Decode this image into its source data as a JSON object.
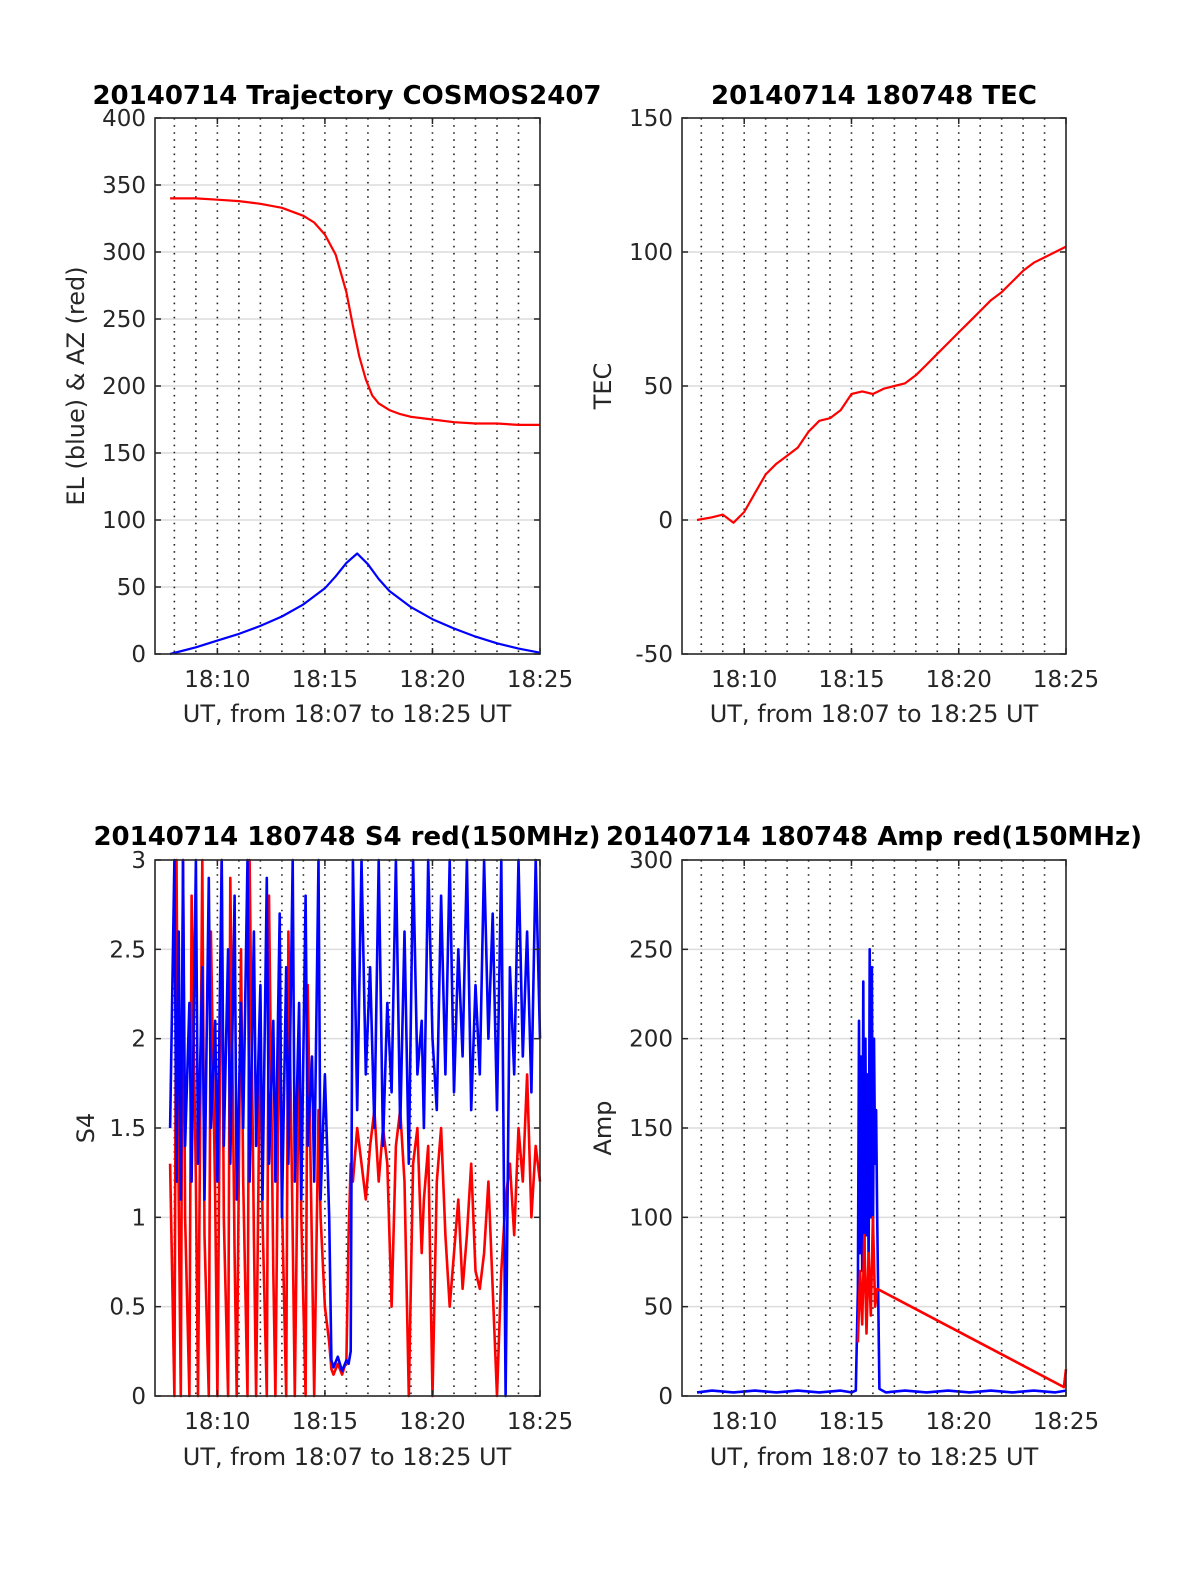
{
  "chart_data": [
    {
      "type": "line",
      "title": "20140714 Trajectory COSMOS2407",
      "xlabel": "UT, from 18:07 to 18:25 UT",
      "ylabel": "EL (blue) & AZ (red)",
      "x_unit": "minutes after 18:00 UT",
      "xlim": [
        7.1,
        25
      ],
      "ylim": [
        0,
        400
      ],
      "x_ticks": [
        10,
        15,
        20,
        25
      ],
      "x_tick_labels": [
        "18:10",
        "18:15",
        "18:20",
        "18:25"
      ],
      "y_ticks": [
        0,
        50,
        100,
        150,
        200,
        250,
        300,
        350,
        400
      ],
      "y_tick_labels": [
        "0",
        "50",
        "100",
        "150",
        "200",
        "250",
        "300",
        "350",
        "400"
      ],
      "grid": true,
      "series": [
        {
          "color": "#ff0000",
          "x": [
            7.8,
            9,
            10,
            11,
            12,
            13,
            14,
            14.5,
            15,
            15.5,
            16,
            16.3,
            16.6,
            16.9,
            17.2,
            17.5,
            18,
            18.5,
            19,
            20,
            21,
            22,
            23,
            24,
            25
          ],
          "y": [
            340,
            340,
            339,
            338,
            336,
            333,
            327,
            322,
            313,
            298,
            270,
            245,
            222,
            205,
            193,
            187,
            182,
            179,
            177,
            175,
            173,
            172,
            172,
            171,
            171
          ]
        },
        {
          "color": "#0000ff",
          "x": [
            7.8,
            9,
            10,
            11,
            12,
            13,
            14,
            15,
            15.5,
            16,
            16.5,
            17,
            17.5,
            18,
            19,
            20,
            21,
            22,
            23,
            24,
            25
          ],
          "y": [
            0,
            5,
            10,
            15,
            21,
            28,
            37,
            49,
            58,
            68,
            75,
            67,
            56,
            47,
            35,
            26,
            19,
            13,
            8,
            4,
            1
          ]
        }
      ]
    },
    {
      "type": "line",
      "title": "20140714 180748 TEC",
      "xlabel": "UT, from 18:07 to 18:25 UT",
      "ylabel": "TEC",
      "x_unit": "minutes after 18:00 UT",
      "xlim": [
        7.1,
        25
      ],
      "ylim": [
        -50,
        150
      ],
      "x_ticks": [
        10,
        15,
        20,
        25
      ],
      "x_tick_labels": [
        "18:10",
        "18:15",
        "18:20",
        "18:25"
      ],
      "y_ticks": [
        -50,
        0,
        50,
        100,
        150
      ],
      "y_tick_labels": [
        "-50",
        "0",
        "50",
        "100",
        "150"
      ],
      "grid": true,
      "series": [
        {
          "color": "#ff0000",
          "x": [
            7.8,
            8.5,
            9,
            9.5,
            10,
            10.5,
            11,
            11.5,
            12,
            12.5,
            13,
            13.5,
            14,
            14.5,
            15,
            15.5,
            16,
            16.5,
            17,
            17.5,
            18,
            18.5,
            19,
            19.5,
            20,
            20.5,
            21,
            21.5,
            22,
            22.5,
            23,
            23.5,
            24,
            24.5,
            25
          ],
          "y": [
            0,
            1,
            2,
            -1,
            3,
            10,
            17,
            21,
            24,
            27,
            33,
            37,
            38,
            41,
            47,
            48,
            47,
            49,
            50,
            51,
            54,
            58,
            62,
            66,
            70,
            74,
            78,
            82,
            85,
            89,
            93,
            96,
            98,
            100,
            102
          ]
        }
      ]
    },
    {
      "type": "line",
      "title": "20140714 180748 S4 red(150MHz)",
      "xlabel": "UT, from 18:07 to 18:25 UT",
      "ylabel": "S4",
      "x_unit": "minutes after 18:00 UT",
      "xlim": [
        7.1,
        25
      ],
      "ylim": [
        0,
        3
      ],
      "x_ticks": [
        10,
        15,
        20,
        25
      ],
      "x_tick_labels": [
        "18:10",
        "18:15",
        "18:20",
        "18:25"
      ],
      "y_ticks": [
        0,
        0.5,
        1,
        1.5,
        2,
        2.5,
        3
      ],
      "y_tick_labels": [
        "0",
        "0.5",
        "1",
        "1.5",
        "2",
        "2.5",
        "3"
      ],
      "grid": true,
      "series": [
        {
          "color": "#ff0000",
          "x": [
            7.8,
            8.0,
            8.1,
            8.2,
            8.3,
            8.4,
            8.5,
            8.7,
            8.8,
            9.0,
            9.1,
            9.3,
            9.4,
            9.6,
            9.7,
            9.9,
            10.0,
            10.2,
            10.3,
            10.5,
            10.6,
            10.8,
            10.9,
            11.1,
            11.2,
            11.4,
            11.5,
            11.7,
            11.8,
            12.0,
            12.1,
            12.3,
            12.4,
            12.6,
            12.7,
            12.9,
            13.0,
            13.2,
            13.3,
            13.5,
            13.6,
            13.8,
            13.9,
            14.1,
            14.2,
            14.4,
            14.5,
            14.7,
            14.8,
            15.0,
            15.2,
            15.3,
            15.4,
            15.6,
            15.8,
            16.0,
            16.1,
            16.2,
            16.3,
            16.5,
            16.7,
            16.9,
            17.1,
            17.3,
            17.5,
            17.7,
            17.9,
            18.1,
            18.3,
            18.5,
            18.7,
            18.9,
            19.1,
            19.3,
            19.5,
            19.6,
            19.8,
            20.0,
            20.2,
            20.4,
            20.6,
            20.8,
            21.0,
            21.2,
            21.4,
            21.6,
            21.8,
            22.0,
            22.2,
            22.4,
            22.6,
            22.8,
            23.0,
            23.2,
            23.4,
            23.6,
            23.8,
            24.0,
            24.2,
            24.4,
            24.6,
            24.8,
            25.0
          ],
          "y": [
            1.3,
            0,
            3,
            1.1,
            0,
            3,
            1.0,
            0,
            2.8,
            1.2,
            0,
            3,
            0.9,
            0,
            2.6,
            1.1,
            0,
            3,
            1.0,
            0,
            2.9,
            0.8,
            0,
            2.5,
            1.2,
            0,
            3,
            0.9,
            0,
            2.2,
            1.0,
            0,
            2.8,
            0.7,
            0,
            2.4,
            1.1,
            0,
            2.6,
            0.9,
            0,
            2.0,
            1.0,
            0,
            2.3,
            0.8,
            0,
            1.6,
            1.0,
            0.5,
            0.3,
            0.15,
            0.12,
            0.18,
            0.12,
            0.2,
            0.9,
            1.3,
            1.2,
            1.5,
            1.3,
            1.1,
            1.4,
            1.6,
            1.2,
            1.5,
            1.3,
            0.5,
            1.4,
            1.6,
            1.2,
            0,
            1.3,
            1.5,
            0.8,
            1.1,
            1.4,
            0,
            1.2,
            1.5,
            0.9,
            0.5,
            0.8,
            1.1,
            0.6,
            0.9,
            1.3,
            0.7,
            0.6,
            0.8,
            1.2,
            0.6,
            0,
            0.7,
            1.1,
            1.3,
            0.9,
            1.5,
            1.2,
            1.8,
            1.0,
            1.4,
            1.2
          ]
        },
        {
          "color": "#0000ff",
          "x": [
            7.8,
            8.0,
            8.1,
            8.2,
            8.3,
            8.4,
            8.5,
            8.7,
            8.8,
            9.0,
            9.1,
            9.3,
            9.4,
            9.6,
            9.7,
            9.9,
            10.0,
            10.2,
            10.3,
            10.5,
            10.6,
            10.8,
            10.9,
            11.1,
            11.2,
            11.4,
            11.5,
            11.7,
            11.8,
            12.0,
            12.1,
            12.3,
            12.4,
            12.6,
            12.7,
            12.9,
            13.0,
            13.2,
            13.3,
            13.5,
            13.6,
            13.8,
            13.9,
            14.1,
            14.2,
            14.4,
            14.5,
            14.7,
            14.8,
            15.0,
            15.2,
            15.3,
            15.4,
            15.6,
            15.8,
            16.0,
            16.1,
            16.2,
            16.3,
            16.5,
            16.7,
            16.9,
            17.1,
            17.3,
            17.5,
            17.7,
            17.9,
            18.1,
            18.3,
            18.5,
            18.7,
            18.9,
            19.1,
            19.3,
            19.5,
            19.6,
            19.8,
            20.0,
            20.2,
            20.4,
            20.6,
            20.8,
            21.0,
            21.2,
            21.4,
            21.6,
            21.8,
            22.0,
            22.2,
            22.4,
            22.6,
            22.8,
            23.0,
            23.2,
            23.4,
            23.6,
            23.8,
            24.0,
            24.2,
            24.4,
            24.6,
            24.8,
            25.0
          ],
          "y": [
            1.5,
            3,
            1.2,
            2.6,
            1.1,
            3,
            1.4,
            2.2,
            1.2,
            3,
            1.3,
            2.4,
            1.1,
            2.9,
            1.5,
            2.1,
            1.2,
            3,
            1.4,
            2.5,
            1.3,
            2.8,
            1.1,
            2.2,
            1.5,
            3,
            1.2,
            2.6,
            1.4,
            2.3,
            1.1,
            2.9,
            1.3,
            2.1,
            1.2,
            2.7,
            1.0,
            2.4,
            1.3,
            3,
            1.2,
            2.2,
            1.1,
            2.8,
            1.4,
            1.9,
            1.2,
            3,
            1.1,
            1.8,
            1.0,
            0.2,
            0.16,
            0.22,
            0.14,
            0.2,
            0.18,
            0.25,
            3,
            1.6,
            3,
            1.8,
            2.4,
            1.5,
            3,
            1.4,
            2.2,
            1.7,
            3,
            1.5,
            2.6,
            1.3,
            3,
            1.8,
            2.1,
            1.5,
            3,
            2.0,
            1.6,
            2.8,
            1.8,
            3,
            1.7,
            2.5,
            1.9,
            3,
            1.6,
            2.3,
            1.8,
            3,
            2.0,
            2.7,
            1.6,
            3,
            0,
            2.4,
            1.8,
            3,
            1.9,
            2.6,
            1.7,
            3,
            2.0
          ]
        }
      ]
    },
    {
      "type": "line",
      "title": "20140714 180748 Amp red(150MHz)",
      "xlabel": "UT, from 18:07 to 18:25 UT",
      "ylabel": "Amp",
      "x_unit": "minutes after 18:00 UT",
      "xlim": [
        7.1,
        25
      ],
      "ylim": [
        0,
        300
      ],
      "x_ticks": [
        10,
        15,
        20,
        25
      ],
      "x_tick_labels": [
        "18:10",
        "18:15",
        "18:20",
        "18:25"
      ],
      "y_ticks": [
        0,
        50,
        100,
        150,
        200,
        250,
        300
      ],
      "y_tick_labels": [
        "0",
        "50",
        "100",
        "150",
        "200",
        "250",
        "300"
      ],
      "grid": true,
      "series": [
        {
          "color": "#0000ff",
          "x": [
            7.8,
            8.5,
            9.5,
            10.5,
            11.5,
            12.5,
            13.5,
            14.5,
            15.0,
            15.2,
            15.3,
            15.35,
            15.4,
            15.45,
            15.5,
            15.55,
            15.6,
            15.65,
            15.7,
            15.75,
            15.8,
            15.85,
            15.9,
            15.95,
            16.0,
            16.05,
            16.1,
            16.15,
            16.2,
            16.3,
            16.6,
            17.5,
            18.5,
            19.5,
            20.5,
            21.5,
            22.5,
            23.5,
            24.5,
            25.0
          ],
          "y": [
            2,
            3,
            2,
            3,
            2,
            3,
            2,
            3,
            2,
            3,
            60,
            210,
            80,
            190,
            70,
            232,
            60,
            200,
            90,
            180,
            70,
            250,
            100,
            240,
            80,
            200,
            130,
            160,
            100,
            4,
            2,
            3,
            2,
            3,
            2,
            3,
            2,
            3,
            2,
            3
          ]
        },
        {
          "color": "#ff0000",
          "x": [
            15.3,
            15.4,
            15.5,
            15.6,
            15.7,
            15.8,
            15.9,
            16.0,
            16.1,
            16.2,
            24.9,
            25.0
          ],
          "y": [
            30,
            70,
            40,
            90,
            35,
            80,
            45,
            100,
            50,
            60,
            5,
            15
          ]
        }
      ]
    }
  ]
}
